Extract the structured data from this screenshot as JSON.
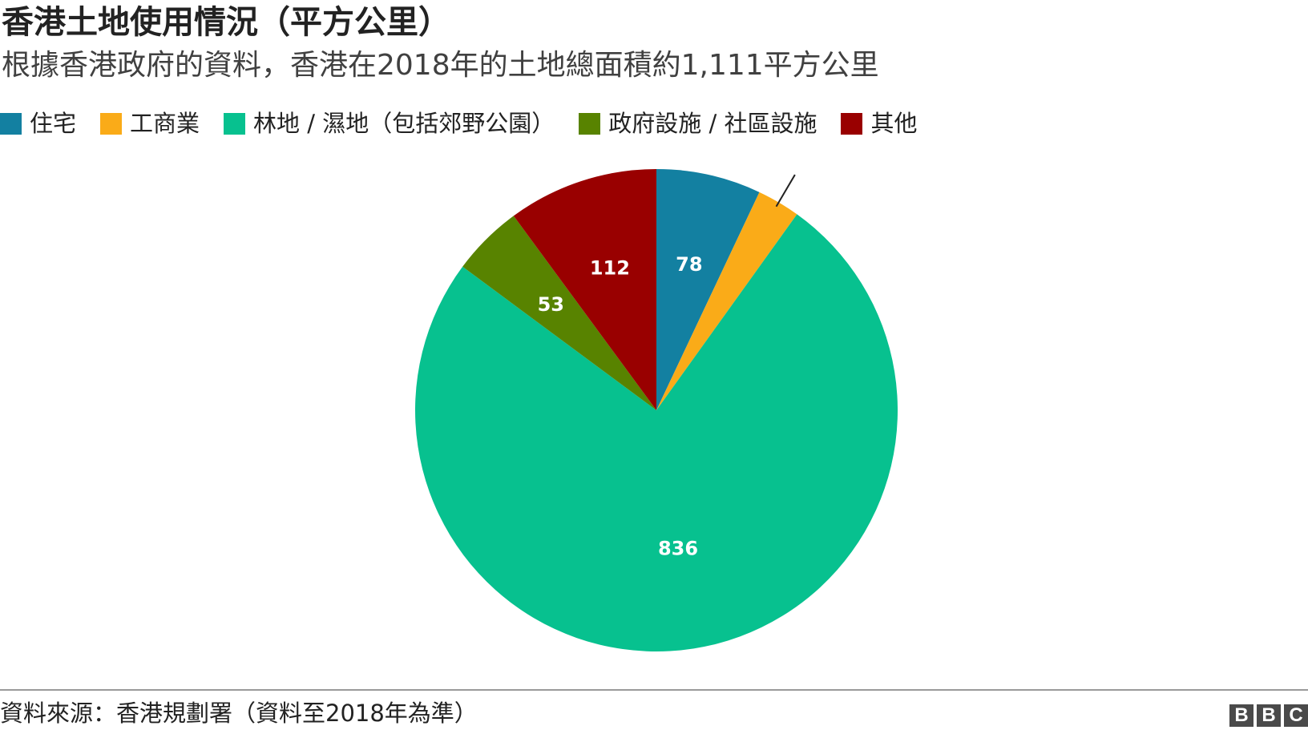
{
  "title": "香港土地使用情況（平方公里）",
  "subtitle": "根據香港政府的資料，香港在2018年的土地總面積約1,111平方公里",
  "source": "資料來源：香港規劃署（資料至2018年為準）",
  "logo": [
    "B",
    "B",
    "C"
  ],
  "chart_data": {
    "type": "pie",
    "categories": [
      "住宅",
      "工商業",
      "林地 / 濕地（包括郊野公園）",
      "政府設施 / 社區設施",
      "其他"
    ],
    "values": [
      78,
      32,
      836,
      53,
      112
    ],
    "data_labels": [
      "78",
      "",
      "836",
      "53",
      "112"
    ],
    "colors": [
      "#1380A1",
      "#FAAB18",
      "#07C18F",
      "#588300",
      "#990000"
    ],
    "legend_position": "top-left",
    "title": "香港土地使用情況（平方公里）",
    "start_angle": "12 o'clock",
    "direction": "clockwise"
  }
}
